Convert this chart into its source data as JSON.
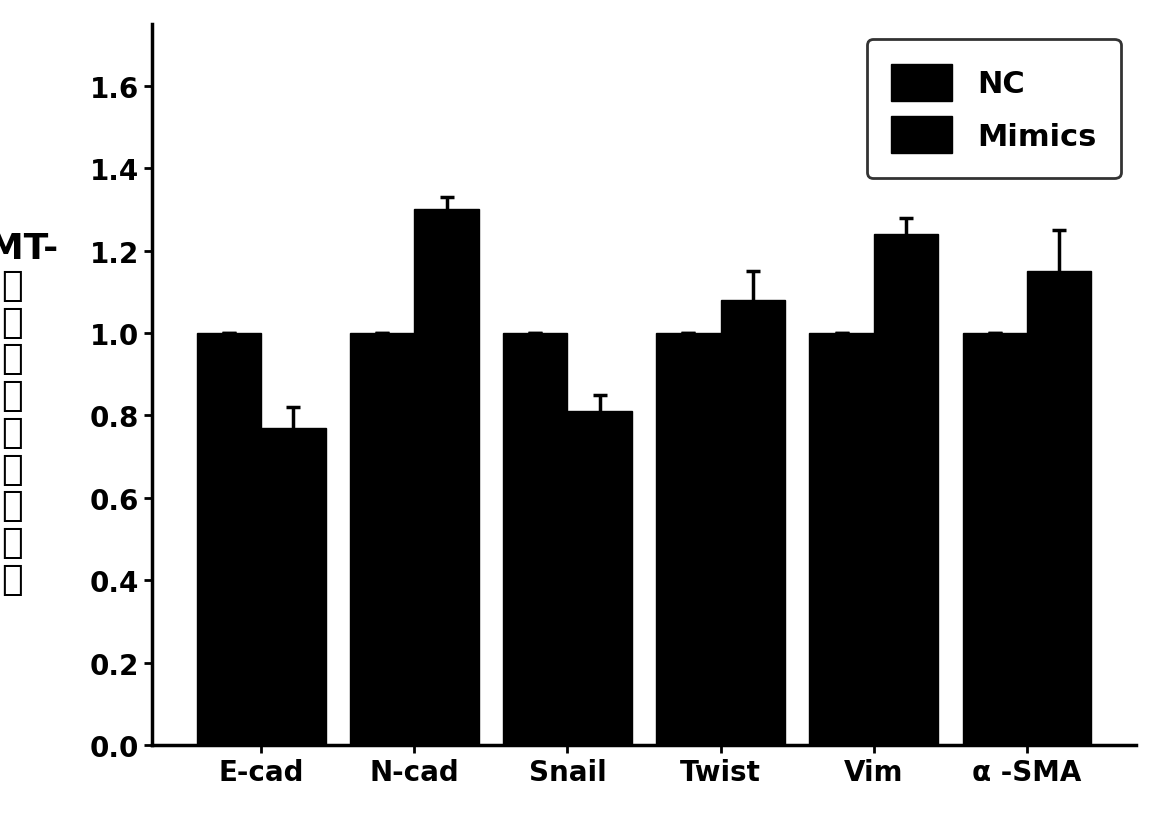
{
  "categories": [
    "E-cad",
    "N-cad",
    "Snail",
    "Twist",
    "Vim",
    "α -SMA"
  ],
  "nc_values": [
    1.0,
    1.0,
    1.0,
    1.0,
    1.0,
    1.0
  ],
  "mimics_values": [
    0.77,
    1.3,
    0.81,
    1.08,
    1.24,
    1.15
  ],
  "nc_errors": [
    0.0,
    0.0,
    0.0,
    0.0,
    0.0,
    0.0
  ],
  "mimics_errors": [
    0.05,
    0.03,
    0.04,
    0.07,
    0.04,
    0.1
  ],
  "bar_color": "#000000",
  "bar_width": 0.42,
  "ylabel_lines": [
    "EMT-",
    "相",
    "关",
    "基",
    "因",
    "的",
    "变",
    "化",
    "倍",
    "数"
  ],
  "ylim": [
    0.0,
    1.75
  ],
  "yticks": [
    0.0,
    0.2,
    0.4,
    0.6,
    0.8,
    1.0,
    1.2,
    1.4,
    1.6
  ],
  "legend_labels": [
    "NC",
    "Mimics"
  ],
  "background_color": "#ffffff",
  "axis_fontsize": 22,
  "tick_fontsize": 20,
  "legend_fontsize": 22,
  "ylabel_fontsize": 26
}
